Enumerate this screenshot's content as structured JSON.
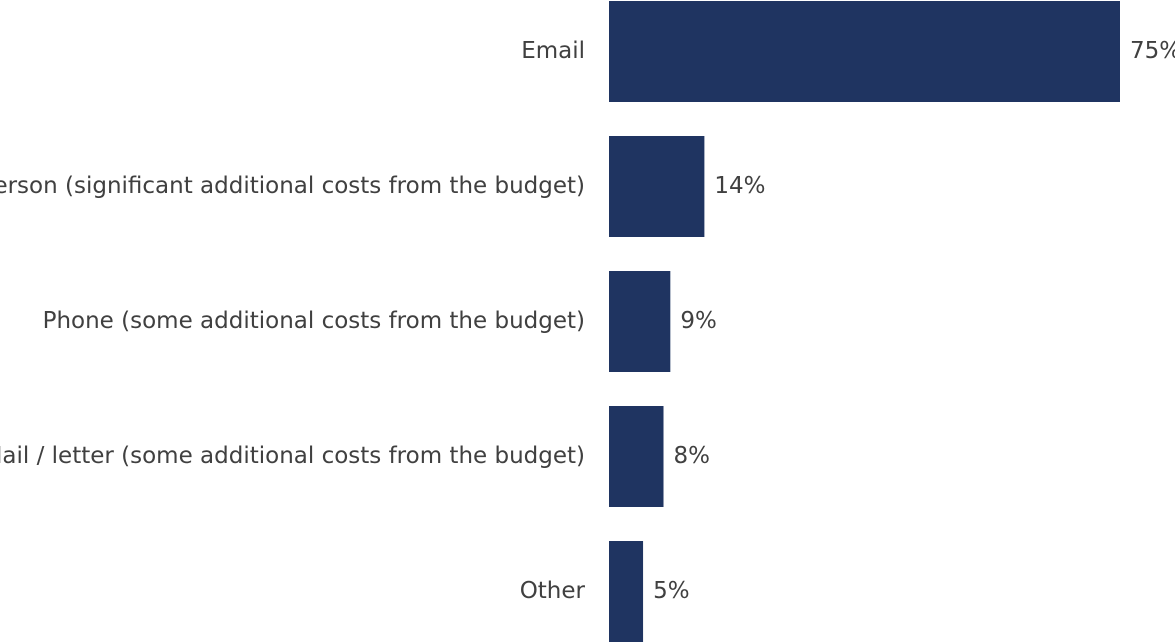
{
  "chart_data": {
    "type": "bar",
    "orientation": "horizontal",
    "categories": [
      "Email",
      "In person (significant additional costs from the budget)",
      "Phone (some additional costs from the budget)",
      "Mail / letter (some additional costs from the budget)",
      "Other"
    ],
    "values": [
      75,
      14,
      9,
      8,
      5
    ],
    "value_labels": [
      "75%",
      "14%",
      "9%",
      "8%",
      "5%"
    ],
    "unit": "%",
    "xlim": [
      0,
      75
    ],
    "grid": false,
    "legend": "none",
    "bar_color": "#1f3461",
    "text_color": "#404040"
  }
}
